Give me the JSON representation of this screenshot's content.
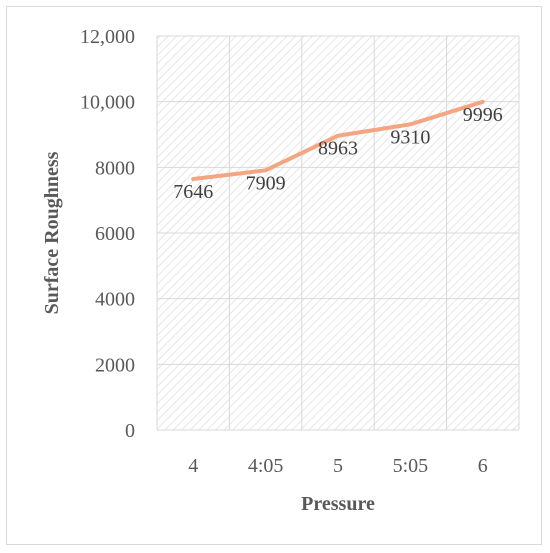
{
  "chart_data": {
    "type": "line",
    "categories": [
      "4",
      "4:05",
      "5",
      "5:05",
      "6"
    ],
    "series": [
      {
        "values": [
          7646,
          7909,
          8963,
          9310,
          9996
        ]
      }
    ],
    "data_labels": [
      "7646",
      "7909",
      "8963",
      "9310",
      "9996"
    ],
    "xlabel": "Pressure",
    "ylabel": "Surface Roughness",
    "ylim": [
      0,
      12000
    ],
    "yticks": [
      0,
      2000,
      4000,
      6000,
      8000,
      10000,
      12000
    ],
    "ytick_labels": [
      "0",
      "2000",
      "4000",
      "6000",
      "8000",
      "10,000",
      "12,000"
    ],
    "grid": true,
    "legend": "none",
    "colors": {
      "line": "#f4a582",
      "grid": "#d9d9d9",
      "plot_fill": "#f2f2f2",
      "text": "#595959"
    }
  }
}
